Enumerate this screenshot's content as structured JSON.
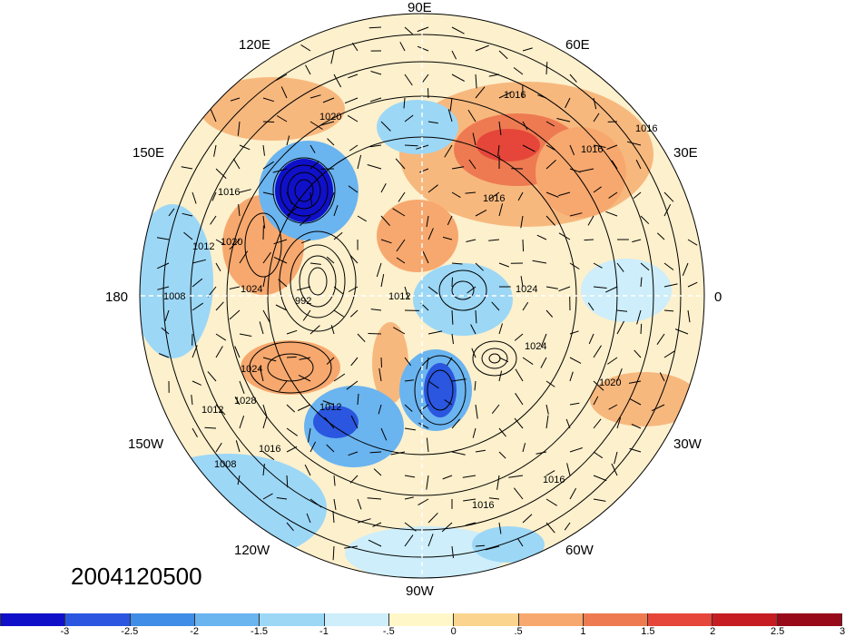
{
  "map": {
    "projection": "north polar stereographic",
    "longitude_labels": {
      "top": "90E",
      "upper_left": "120E",
      "upper_right": "60E",
      "left_upper": "150E",
      "right_upper": "30E",
      "left": "180",
      "right": "0",
      "left_lower": "150W",
      "right_lower": "30W",
      "lower_left": "120W",
      "lower_right": "60W",
      "bottom": "90W"
    },
    "contour_labels": [
      "1016",
      "1020",
      "1016",
      "1024",
      "1012",
      "1024",
      "1012",
      "1020",
      "1024",
      "1008",
      "1012",
      "1016",
      "992",
      "1028",
      "1016",
      "1020",
      "1012",
      "1008",
      "1016",
      "1016",
      "1016",
      "1016",
      "1024"
    ],
    "date": "2004120500"
  },
  "colorbar": {
    "colors": [
      "#1010c8",
      "#2a56e0",
      "#3f8de6",
      "#6ab4f0",
      "#9cd7f6",
      "#cdeefa",
      "#fff7c8",
      "#fbd58f",
      "#f7a86e",
      "#ee7a52",
      "#e6463a",
      "#c51d22",
      "#980a1a"
    ],
    "ticks": [
      "-3",
      "-2.5",
      "-2",
      "-1.5",
      "-1",
      "-.5",
      "0",
      ".5",
      "1",
      "1.5",
      "2",
      "2.5",
      "3"
    ]
  }
}
